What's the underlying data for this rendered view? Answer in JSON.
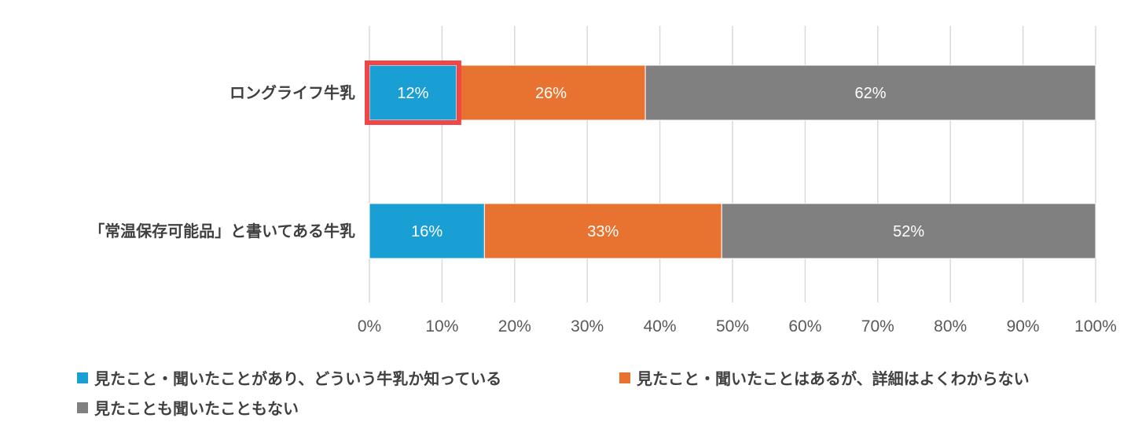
{
  "chart_data": {
    "type": "bar",
    "orientation": "horizontal",
    "stacked": "percent",
    "categories": [
      "ロングライフ牛乳",
      "「常温保存可能品」と書いてある牛乳"
    ],
    "series": [
      {
        "name": "見たこと・聞いたことがあり、どういう牛乳か知っている",
        "color": "#1a9fd4",
        "values": [
          12,
          16
        ],
        "labels": [
          "12%",
          "16%"
        ]
      },
      {
        "name": "見たこと・聞いたことはあるが、詳細はよくわからない",
        "color": "#e87331",
        "values": [
          26,
          33
        ],
        "labels": [
          "26%",
          "33%"
        ]
      },
      {
        "name": "見たことも聞いたこともない",
        "color": "#808080",
        "values": [
          62,
          52
        ],
        "labels": [
          "62%",
          "52%"
        ]
      }
    ],
    "xlim": [
      0,
      100
    ],
    "xticks": [
      "0%",
      "10%",
      "20%",
      "30%",
      "40%",
      "50%",
      "60%",
      "70%",
      "80%",
      "90%",
      "100%"
    ],
    "grid": true,
    "legend_position": "bottom",
    "highlight": {
      "category": 0,
      "series": 0,
      "color": "#f04646"
    }
  }
}
